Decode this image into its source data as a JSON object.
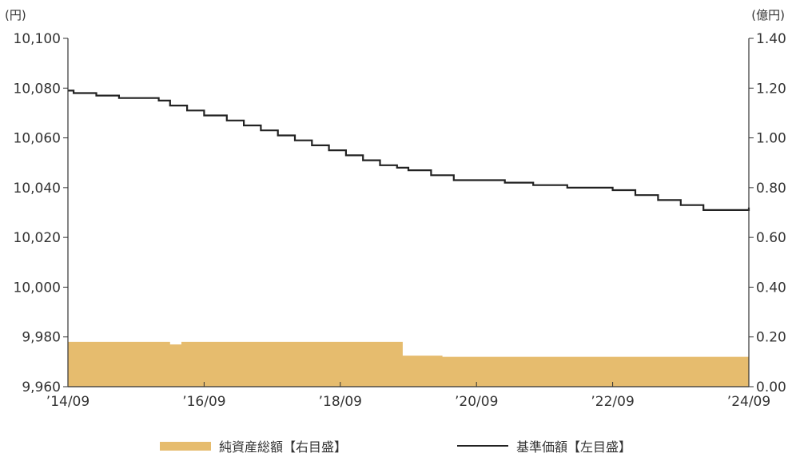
{
  "chart_data": {
    "type": "line",
    "left_unit": "(円)",
    "right_unit": "(億円)",
    "x_tick_labels": [
      "’14/09",
      "’16/09",
      "’18/09",
      "’20/09",
      "’22/09",
      "’24/09"
    ],
    "x_range": [
      "2014-09",
      "2024-09"
    ],
    "y_left": {
      "range": [
        9960,
        10100
      ],
      "ticks": [
        "9,960",
        "9,980",
        "10,000",
        "10,020",
        "10,040",
        "10,060",
        "10,080",
        "10,100"
      ]
    },
    "y_right": {
      "range": [
        0,
        1.4
      ],
      "ticks": [
        "0.00",
        "0.20",
        "0.40",
        "0.60",
        "0.80",
        "1.00",
        "1.20",
        "1.40"
      ]
    },
    "series": [
      {
        "name": "純資産総額【右目盛】",
        "axis": "right",
        "kind": "area",
        "color": "#E6BC6E",
        "points": [
          [
            "2014-09",
            0.18
          ],
          [
            "2016-03",
            0.18
          ],
          [
            "2016-03",
            0.17
          ],
          [
            "2016-05",
            0.17
          ],
          [
            "2016-05",
            0.18
          ],
          [
            "2019-08",
            0.18
          ],
          [
            "2019-08",
            0.125
          ],
          [
            "2020-03",
            0.125
          ],
          [
            "2020-03",
            0.12
          ],
          [
            "2024-09",
            0.12
          ]
        ]
      },
      {
        "name": "基準価額【左目盛】",
        "axis": "left",
        "kind": "step-line",
        "color": "#222222",
        "points": [
          [
            "2014-09",
            10079
          ],
          [
            "2014-10",
            10078
          ],
          [
            "2015-01",
            10078
          ],
          [
            "2015-02",
            10077
          ],
          [
            "2015-06",
            10076
          ],
          [
            "2016-01",
            10075
          ],
          [
            "2016-03",
            10073
          ],
          [
            "2016-06",
            10071
          ],
          [
            "2016-09",
            10069
          ],
          [
            "2017-01",
            10067
          ],
          [
            "2017-04",
            10065
          ],
          [
            "2017-07",
            10063
          ],
          [
            "2017-10",
            10061
          ],
          [
            "2018-01",
            10059
          ],
          [
            "2018-04",
            10057
          ],
          [
            "2018-07",
            10055
          ],
          [
            "2018-10",
            10053
          ],
          [
            "2019-01",
            10051
          ],
          [
            "2019-04",
            10049
          ],
          [
            "2019-07",
            10048
          ],
          [
            "2019-09",
            10047
          ],
          [
            "2020-01",
            10045
          ],
          [
            "2020-05",
            10043
          ],
          [
            "2021-02",
            10042
          ],
          [
            "2021-07",
            10041
          ],
          [
            "2022-01",
            10040
          ],
          [
            "2022-09",
            10039
          ],
          [
            "2023-01",
            10037
          ],
          [
            "2023-05",
            10035
          ],
          [
            "2023-09",
            10033
          ],
          [
            "2024-01",
            10031
          ],
          [
            "2024-09",
            10032
          ]
        ]
      }
    ],
    "legend_position": "bottom",
    "grid": false
  }
}
